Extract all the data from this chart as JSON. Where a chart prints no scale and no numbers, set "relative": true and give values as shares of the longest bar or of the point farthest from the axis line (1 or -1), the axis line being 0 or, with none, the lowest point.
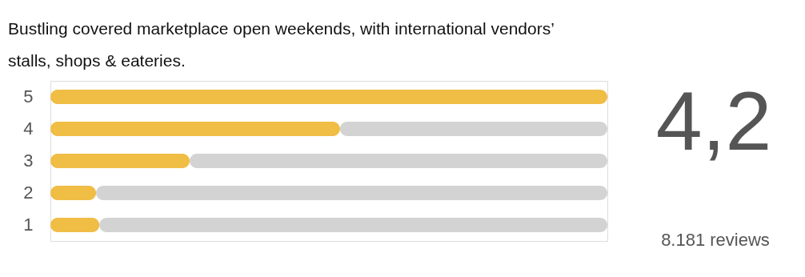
{
  "chart_data": {
    "type": "bar",
    "orientation": "horizontal",
    "relative": true,
    "stacked": true,
    "title": "Bustling covered marketplace open weekends, with international vendors’ stalls, shops & eateries.",
    "categories": [
      "5",
      "4",
      "3",
      "2",
      "1"
    ],
    "series": [
      {
        "color": "#f0bd45",
        "values": [
          1,
          0.52,
          0.25,
          0.082,
          0.088
        ]
      },
      {
        "color": "#d3d3d3",
        "values": [
          0,
          0.48,
          0.75,
          0.918,
          0.912
        ]
      }
    ],
    "annotations": [
      "4,2",
      "8.181 reviews"
    ]
  }
}
